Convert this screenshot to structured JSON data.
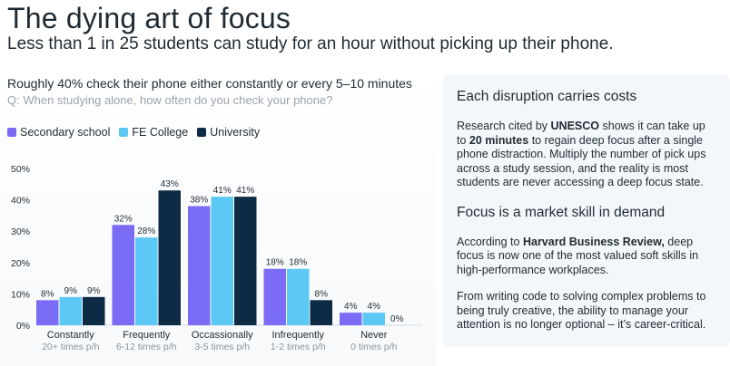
{
  "title": "The dying art of focus",
  "subtitle": "Less than 1 in 25 students can study for an hour without picking up their phone.",
  "chart_heading": "Roughly 40% check their phone either constantly or every 5–10 minutes",
  "chart_question": "Q: When studying alone, how often do you check your phone?",
  "chart_data": {
    "type": "bar",
    "categories": [
      "Constantly",
      "Frequently",
      "Occassionally",
      "Infrequently",
      "Never"
    ],
    "category_sublabels": [
      "20+ times p/h",
      "6-12 times p/h",
      "3-5 times p/h",
      "1-2 times p/h",
      "0 times p/h"
    ],
    "series": [
      {
        "name": "Secondary school",
        "values": [
          8,
          32,
          38,
          18,
          4
        ],
        "color": "#7b6cf6"
      },
      {
        "name": "FE College",
        "values": [
          9,
          28,
          41,
          18,
          4
        ],
        "color": "#5cc8f5"
      },
      {
        "name": "University",
        "values": [
          9,
          43,
          41,
          8,
          0
        ],
        "color": "#0d2b45"
      }
    ],
    "ylim": [
      0,
      50
    ],
    "yticks": [
      "0%",
      "10%",
      "20%",
      "30%",
      "40%",
      "50%"
    ],
    "value_suffix": "%",
    "legend_position": "top-left",
    "grid": false
  },
  "panel": {
    "heading1": "Each disruption carries costs",
    "p1_before": "Research cited by ",
    "p1_bold1": "UNESCO",
    "p1_mid": " shows it can take up to ",
    "p1_bold2": "20 minutes",
    "p1_after": " to regain deep focus after a single phone distraction. Multiply the number of pick ups across a study session, and the reality is most students are never accessing a deep focus state.",
    "heading2": "Focus is a market skill in demand",
    "p2_before": "According to ",
    "p2_bold": "Harvard Business Review,",
    "p2_after": " deep focus is now one of the most valued soft skills in high-performance workplaces.",
    "p3": "From writing code to solving complex problems to being truly creative, the ability to manage your attention is no longer optional – it’s career-critical."
  }
}
